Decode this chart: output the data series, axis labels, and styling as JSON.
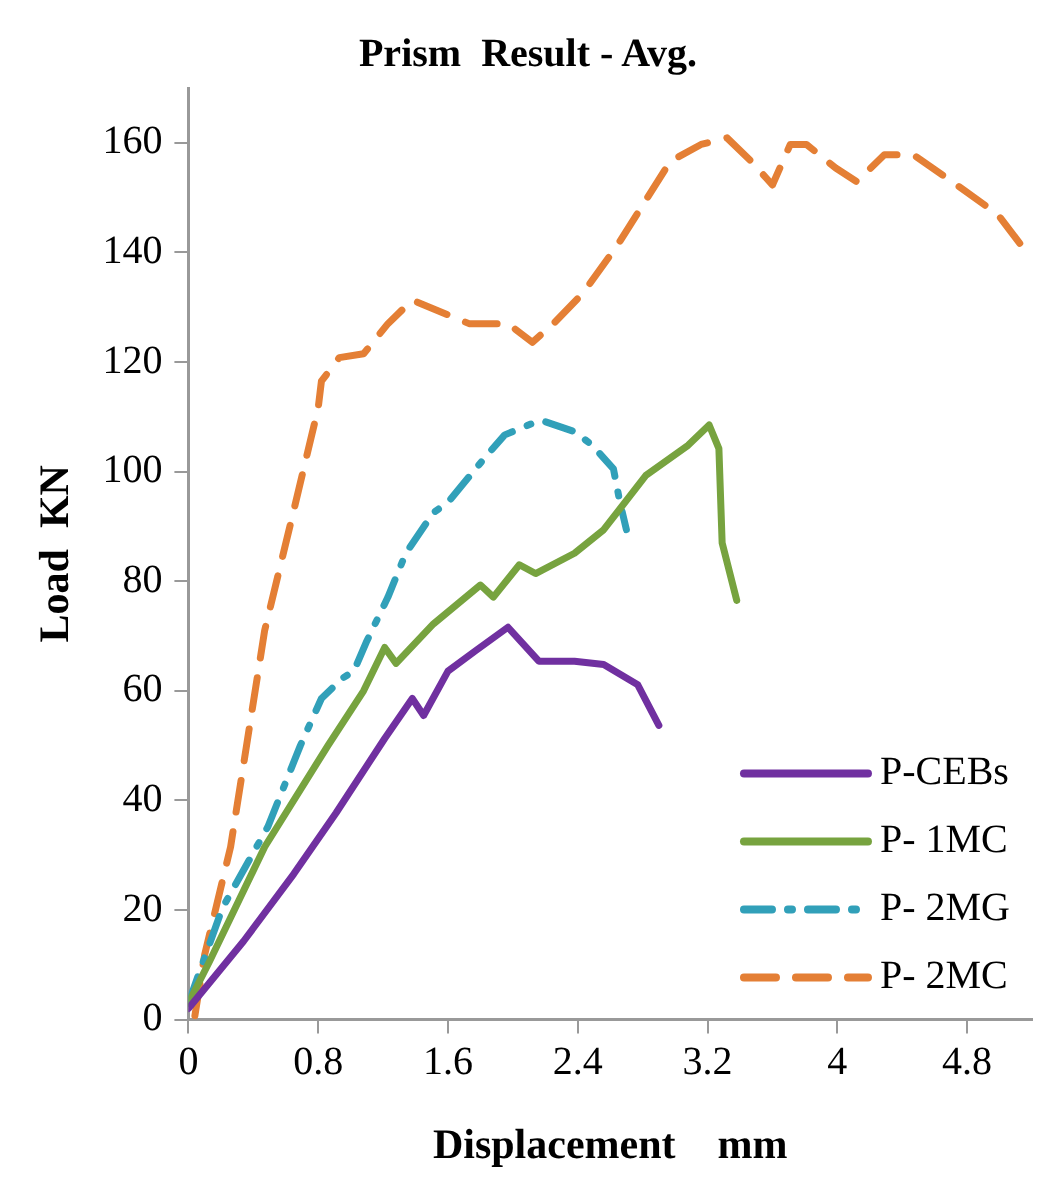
{
  "chart_data": {
    "type": "line",
    "title": "Prism  Result - Avg.",
    "xlabel": "Displacement    mm",
    "ylabel": "Load  KN",
    "xlim": [
      0,
      5.2
    ],
    "xticks": [
      0,
      0.8,
      1.6,
      2.4,
      3.2,
      4,
      4.8
    ],
    "ylim": [
      0,
      170
    ],
    "yticks": [
      0,
      20,
      40,
      60,
      80,
      100,
      120,
      140,
      160
    ],
    "grid": false,
    "legend": "bottom right",
    "marker": "none",
    "series": [
      {
        "name": "P-CEBs",
        "color": "#7030a0",
        "line_style": "solid",
        "x": [
          0,
          0.34,
          0.65,
          0.91,
          1.21,
          1.38,
          1.45,
          1.6,
          1.77,
          1.97,
          2.16,
          2.38,
          2.56,
          2.77,
          2.9
        ],
        "values": [
          2,
          14.3,
          26.6,
          37.7,
          51.3,
          58.6,
          55.5,
          63.6,
          67.3,
          71.6,
          65.4,
          65.4,
          64.8,
          61.1,
          53.7
        ]
      },
      {
        "name": "P- 1MC",
        "color": "#77a33f",
        "line_style": "solid",
        "x": [
          0,
          0.13,
          0.47,
          0.86,
          1.08,
          1.21,
          1.28,
          1.51,
          1.8,
          1.88,
          2.04,
          2.14,
          2.38,
          2.56,
          2.82,
          3.08,
          3.21,
          3.27,
          3.29,
          3.38
        ],
        "values": [
          3,
          10.6,
          31.5,
          50,
          60,
          67.9,
          65,
          72.2,
          79.3,
          77.1,
          83,
          81.4,
          85.1,
          89.4,
          99.3,
          104.8,
          108.5,
          104.2,
          87,
          76.5
        ]
      },
      {
        "name": "P- 2MG",
        "color": "#31a0b9",
        "line_style": "dashdot",
        "x": [
          0,
          0.21,
          0.49,
          0.69,
          0.82,
          0.95,
          1.02,
          1.1,
          1.23,
          1.34,
          1.51,
          1.6,
          1.84,
          1.95,
          2.17,
          2.38,
          2.49,
          2.62,
          2.66,
          2.7
        ],
        "values": [
          3,
          20.4,
          35.2,
          50,
          58.6,
          62.3,
          63.6,
          69.1,
          77.1,
          85.1,
          92.5,
          94.4,
          103,
          106.7,
          109.4,
          107.3,
          104.8,
          100.5,
          94.4,
          89.4
        ]
      },
      {
        "name": "P- 2MC",
        "color": "#e47f35",
        "line_style": "dashed",
        "x": [
          0.04,
          0.1,
          0.26,
          0.47,
          0.65,
          0.8,
          0.82,
          0.93,
          1.08,
          1.23,
          1.38,
          1.73,
          1.97,
          2.12,
          2.25,
          2.43,
          2.64,
          2.97,
          3.16,
          3.32,
          3.47,
          3.6,
          3.71,
          3.81,
          3.99,
          4.12,
          4.29,
          4.47,
          4.77,
          4.99,
          5.18
        ],
        "values": [
          0.7,
          11.8,
          31.5,
          71,
          93,
          111.6,
          116.5,
          120.8,
          121.5,
          127,
          131.3,
          127,
          127,
          123.6,
          127,
          132.5,
          141.1,
          156.6,
          159.7,
          160.9,
          156.6,
          152.3,
          159.7,
          159.7,
          155.4,
          152.9,
          157.8,
          157.8,
          151.6,
          146.9,
          139.5
        ]
      }
    ]
  }
}
